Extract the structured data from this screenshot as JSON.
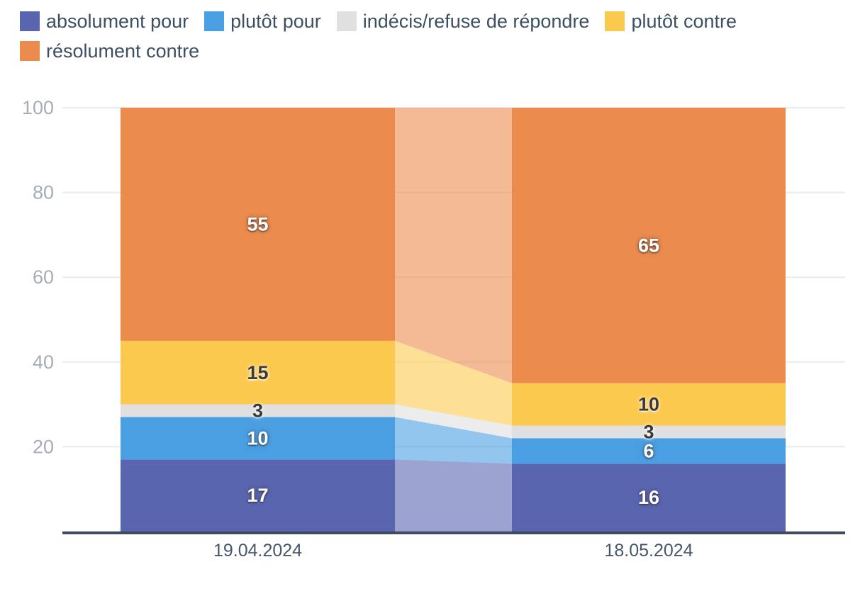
{
  "chart_data": {
    "type": "bar",
    "subtype": "stacked-column-100-with-flow-bands",
    "title": "",
    "xlabel": "",
    "ylabel": "",
    "categories": [
      "19.04.2024",
      "18.05.2024"
    ],
    "series": [
      {
        "name": "absolument pour",
        "color": "#5A65B0",
        "label_style": "light",
        "values": [
          17,
          16
        ]
      },
      {
        "name": "plutôt pour",
        "color": "#4A9FE3",
        "label_style": "light",
        "values": [
          10,
          6
        ]
      },
      {
        "name": "indécis/refuse de répondre",
        "color": "#E0E0E0",
        "label_style": "dark",
        "values": [
          3,
          3
        ]
      },
      {
        "name": "plutôt contre",
        "color": "#FCC94F",
        "label_style": "dark",
        "values": [
          15,
          10
        ]
      },
      {
        "name": "résolument contre",
        "color": "#EC8B4E",
        "label_style": "light",
        "values": [
          55,
          65
        ]
      }
    ],
    "ylim": [
      0,
      100
    ],
    "yticks": [
      20,
      40,
      60,
      80,
      100
    ],
    "grid": true,
    "legend_position": "top-left",
    "band_opacity": 0.6
  },
  "colors": {
    "background": "#FFFFFF",
    "grid_line": "#EBEBEB",
    "axis_line": "#3E4D5E",
    "ytick_text": "#A7ADB6",
    "category_text": "#45566B",
    "legend_text": "#3D4F63",
    "value_label_light": "#FFFFFF",
    "value_label_dark": "#3A3A3A"
  }
}
